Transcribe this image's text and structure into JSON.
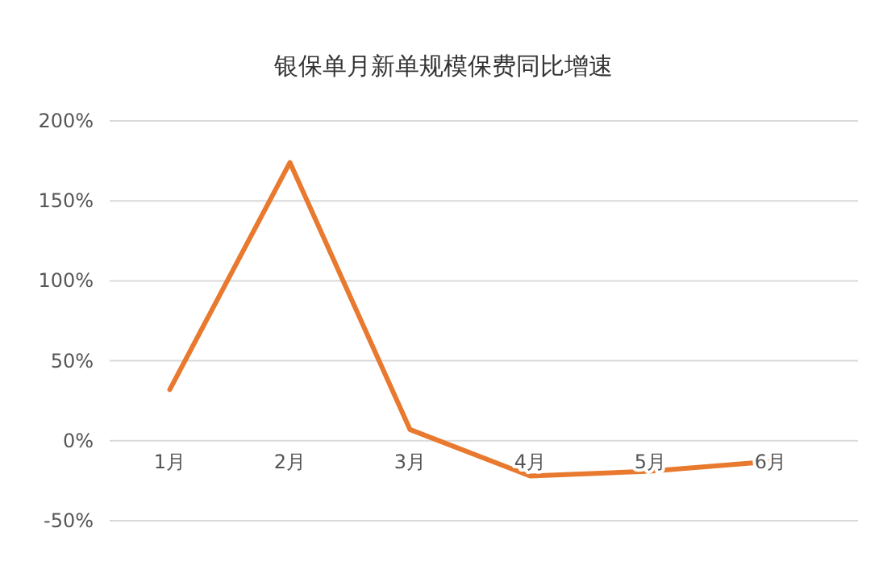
{
  "chart_data": {
    "type": "line",
    "title": "银保单月新单规模保费同比增速",
    "categories": [
      "1月",
      "2月",
      "3月",
      "4月",
      "5月",
      "6月"
    ],
    "series": [
      {
        "color": "#e8792e",
        "values": [
          32,
          174,
          7,
          -22,
          -19,
          -13
        ]
      }
    ],
    "ylim": [
      -50,
      200
    ],
    "yticks": [
      {
        "value": -50,
        "label": "-50%"
      },
      {
        "value": 0,
        "label": "0%"
      },
      {
        "value": 50,
        "label": "50%"
      },
      {
        "value": 100,
        "label": "100%"
      },
      {
        "value": 150,
        "label": "150%"
      },
      {
        "value": 200,
        "label": "200%"
      }
    ],
    "grid": "y",
    "marker": "none",
    "line_style": "solid"
  }
}
